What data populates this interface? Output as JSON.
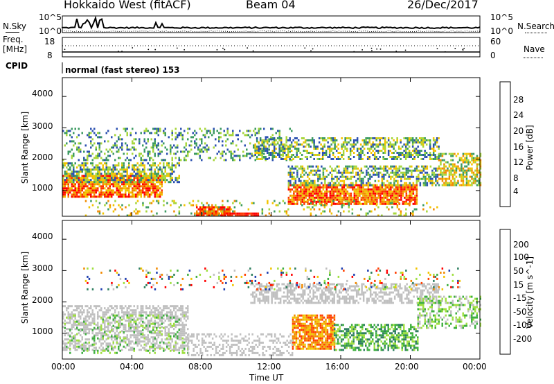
{
  "header": {
    "radar": "Hokkaido West (fitACF)",
    "beam": "Beam 04",
    "date": "26/Dec/2017"
  },
  "panels": {
    "noise": {
      "left_label": "N.Sky",
      "right_label": "N.Search",
      "left_ticks": [
        "10^5",
        "10^0"
      ],
      "right_ticks": [
        "10^5",
        "10^0"
      ]
    },
    "freq": {
      "left_label_1": "Freq.",
      "left_label_2": "[MHz]",
      "right_label": "Nave",
      "left_ticks": [
        "18",
        "8"
      ],
      "right_ticks": [
        "60",
        "0"
      ]
    },
    "cpid": {
      "label": "CPID",
      "text": "normal (fast stereo) 153"
    }
  },
  "chart_data": [
    {
      "type": "heatmap",
      "title": "",
      "ylabel": "Slant Range [km]",
      "xlabel": "",
      "y_ticks": [
        "1000",
        "2000",
        "3000",
        "4000"
      ],
      "ylim": [
        180,
        4600
      ],
      "colorbar_label": "Power [dB]",
      "colorbar_ticks": [
        "4",
        "8",
        "12",
        "16",
        "20",
        "24",
        "28"
      ],
      "colors": [
        "#0000ff",
        "#2b50b0",
        "#3b9a60",
        "#a6d63a",
        "#f2c400",
        "#f28a00",
        "#ff3300",
        "#ff0000"
      ]
    },
    {
      "type": "heatmap",
      "title": "",
      "ylabel": "Slant Range [km]",
      "xlabel": "Time UT",
      "x_ticks": [
        "00:00",
        "04:00",
        "08:00",
        "12:00",
        "16:00",
        "20:00",
        "00:00"
      ],
      "y_ticks": [
        "1000",
        "2000",
        "3000",
        "4000"
      ],
      "ylim": [
        180,
        4600
      ],
      "colorbar_label": "Velocity [m s^-1]",
      "colorbar_ticks": [
        "200",
        "100",
        "50",
        "15",
        "-15",
        "-50",
        "-100",
        "-200"
      ],
      "colors": [
        "#1f3fb0",
        "#2f7f60",
        "#3faf40",
        "#9fdf40",
        "#c0c0c0",
        "#f2c400",
        "#f28a00",
        "#ff4000",
        "#ff0000"
      ]
    }
  ]
}
